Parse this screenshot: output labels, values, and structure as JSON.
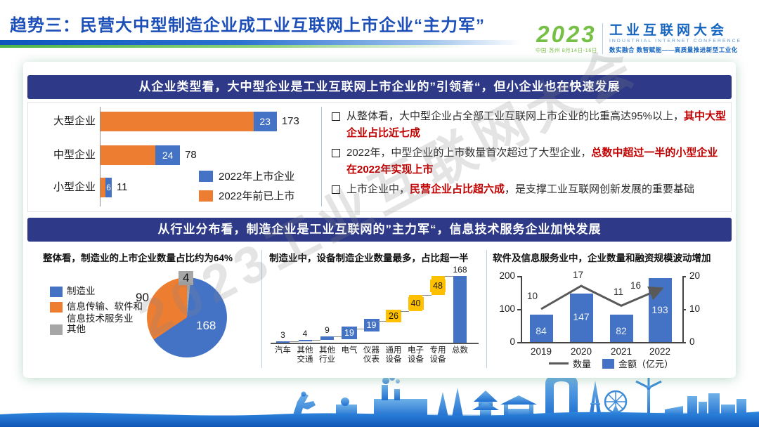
{
  "header": {
    "title": "趋势三：民营大中型制造企业成工业互联网上市企业“主力军”",
    "logo": {
      "year": "2023",
      "date_venue": "中国·苏州  8月14日-16日",
      "name_cn": "工业互联网大会",
      "name_en": "INDUSTRIAL INTERNET CONFERENCE",
      "slogan": "数实融合  数智赋能——高质量推进新型工业化"
    }
  },
  "watermark": "2023工业互联网大会",
  "section_type": {
    "banner": "从企业类型看，大中型企业是工业互联网上市企业的”引领者“，但小企业也在快速发展",
    "bullets": [
      {
        "segments": [
          {
            "t": "从整体看，大中型企业占全部工业互联网上市企业的比重高达95%以上，",
            "red": false
          },
          {
            "t": "其中大型企业占比近七成",
            "red": true
          }
        ]
      },
      {
        "segments": [
          {
            "t": "2022年，中型企业的上市数量首次超过了大型企业，",
            "red": false
          },
          {
            "t": "总数中超过一半的小型企业在2022年实现上市",
            "red": true
          }
        ]
      },
      {
        "segments": [
          {
            "t": "上市企业中，",
            "red": false
          },
          {
            "t": "民营企业占比超六成",
            "red": true
          },
          {
            "t": "，是支撑工业互联网创新发展的重要基础",
            "red": false
          }
        ]
      }
    ]
  },
  "section_industry": {
    "banner": "从行业分布看，制造企业是工业互联网的”主力军“，信息技术服务企业加快发展"
  },
  "colors": {
    "banner_navy": "#2e3a87",
    "title_blue": "#1d4fb8",
    "bar_blue": "#4472C4",
    "bar_orange": "#ED7D31",
    "bar_yellow": "#FFC000",
    "slice_gray": "#A6A6A6",
    "line_gray": "#595959",
    "red_text": "#c00000"
  },
  "chart_data": [
    {
      "type": "bar",
      "subtype": "stacked-horizontal",
      "categories": [
        "大型企业",
        "中型企业",
        "小型企业"
      ],
      "series": [
        {
          "name": "2022年前已上市",
          "color": "#ED7D31",
          "values": [
            150,
            54,
            5
          ]
        },
        {
          "name": "2022年上市企业",
          "color": "#4472C4",
          "values": [
            23,
            24,
            6
          ]
        }
      ],
      "segment_labels": [
        23,
        24,
        6
      ],
      "totals": [
        173,
        78,
        11
      ],
      "legend": [
        {
          "label": "2022年上市企业",
          "color": "#4472C4"
        },
        {
          "label": "2022年前已上市",
          "color": "#ED7D31"
        }
      ]
    },
    {
      "type": "pie",
      "title": "整体看，制造业的上市企业数量占比约为64%",
      "labels": [
        "制造业",
        "信息传输、软件和信息技术服务业",
        "其他"
      ],
      "legend_lines": [
        [
          "制造业"
        ],
        [
          "信息传输、软件和",
          "信息技术服务业"
        ],
        [
          "其他"
        ]
      ],
      "values": [
        168,
        90,
        4
      ],
      "colors": [
        "#4472C4",
        "#ED7D31",
        "#A6A6A6"
      ],
      "clockwise_from_top_order": [
        2,
        0,
        1
      ]
    },
    {
      "type": "bar",
      "subtype": "waterfall",
      "title": "制造业中，设备制造企业数量最多，占比超一半",
      "categories": [
        "汽车",
        "其他交通",
        "其他行业",
        "电气",
        "仪器仪表",
        "通用设备",
        "电子设备",
        "专用设备",
        "总数"
      ],
      "category_lines": [
        [
          "汽车"
        ],
        [
          "其他",
          "交通"
        ],
        [
          "其他",
          "行业"
        ],
        [
          "电气"
        ],
        [
          "仪器",
          "仪表"
        ],
        [
          "通用",
          "设备"
        ],
        [
          "电子",
          "设备"
        ],
        [
          "专用",
          "设备"
        ],
        [
          "总数"
        ]
      ],
      "values": [
        3,
        4,
        9,
        19,
        19,
        26,
        40,
        48,
        168
      ],
      "bar_colors": [
        "#4472C4",
        "#4472C4",
        "#4472C4",
        "#4472C4",
        "#4472C4",
        "#FFC000",
        "#FFC000",
        "#FFC000",
        "#4472C4"
      ],
      "is_total": [
        false,
        false,
        false,
        false,
        false,
        false,
        false,
        false,
        true
      ]
    },
    {
      "type": "bar",
      "subtype": "combo-bar-line",
      "title": "软件及信息服务业中，企业数量和融资规模波动增加",
      "categories": [
        "2019",
        "2020",
        "2021",
        "2022"
      ],
      "series": [
        {
          "name": "金额（亿元）",
          "chart": "bar",
          "color": "#4472C4",
          "axis": "left",
          "values": [
            84,
            147,
            82,
            193
          ]
        },
        {
          "name": "数量",
          "chart": "line",
          "color": "#595959",
          "axis": "right",
          "values": [
            10,
            17,
            11,
            16
          ]
        }
      ],
      "left_axis": {
        "ticks": [
          0,
          100,
          200
        ],
        "max": 200
      },
      "right_axis": {
        "ticks": [
          0,
          10,
          20
        ],
        "max": 20
      },
      "legend": [
        {
          "label": "数量",
          "swatch": "line"
        },
        {
          "label": "金额（亿元）",
          "swatch": "bar"
        }
      ]
    }
  ]
}
